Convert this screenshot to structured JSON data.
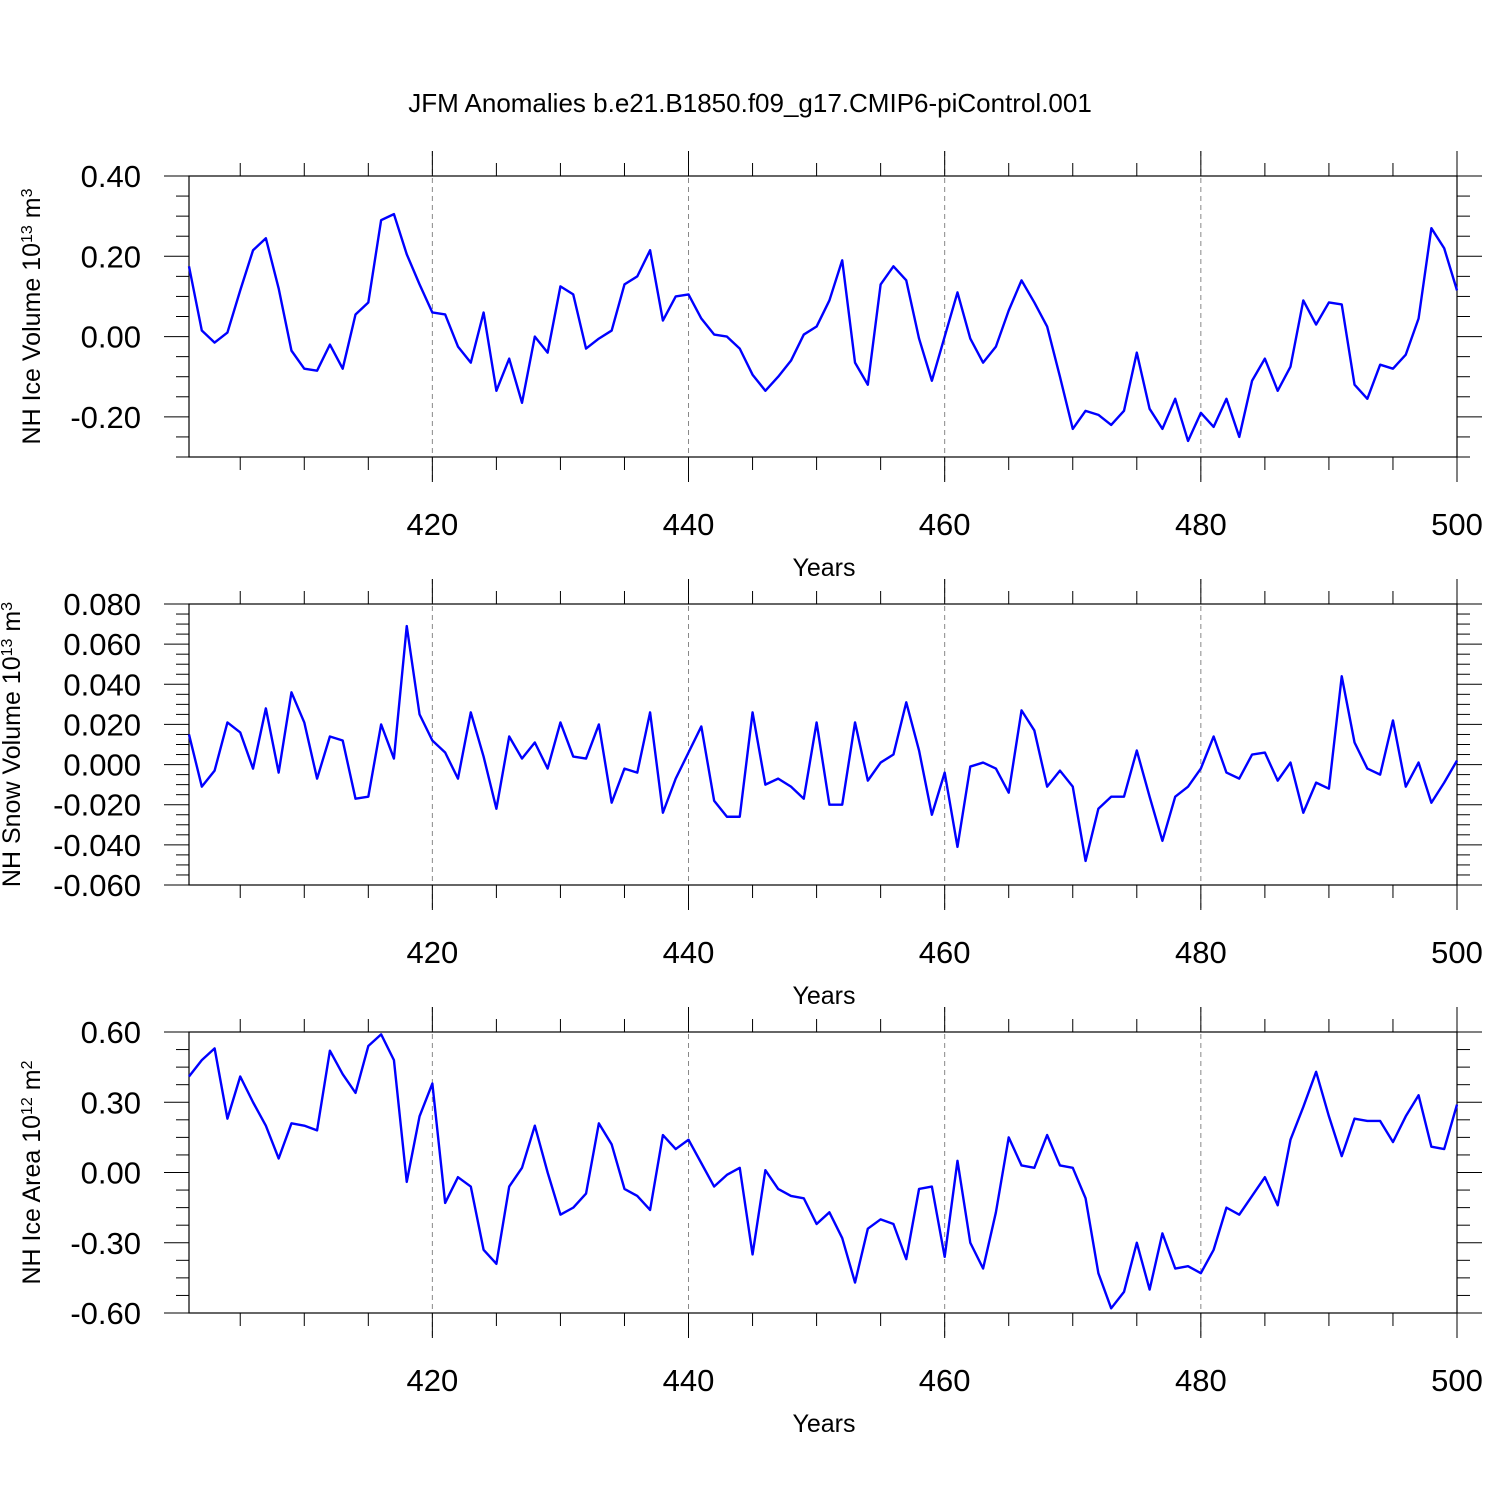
{
  "title": "JFM Anomalies b.e21.B1850.f09_g17.CMIP6-piControl.001",
  "chart_data": [
    {
      "type": "line",
      "ylabel": "NH Ice Volume",
      "units_base": "10",
      "units_exp": "13",
      "units_unit": "m",
      "units_unit_exp": "3",
      "xlabel": "Years",
      "xlim": [
        401,
        500
      ],
      "ylim": [
        -0.3,
        0.4
      ],
      "yticks": [
        -0.2,
        0.0,
        0.2,
        0.4
      ],
      "ytick_labels": [
        "-0.20",
        "0.00",
        "0.20",
        "0.40"
      ],
      "xticks": [
        420,
        440,
        460,
        480,
        500
      ],
      "xtick_labels": [
        "420",
        "440",
        "460",
        "480",
        "500"
      ],
      "x": [
        401,
        402,
        403,
        404,
        405,
        406,
        407,
        408,
        409,
        410,
        411,
        412,
        413,
        414,
        415,
        416,
        417,
        418,
        419,
        420,
        421,
        422,
        423,
        424,
        425,
        426,
        427,
        428,
        429,
        430,
        431,
        432,
        433,
        434,
        435,
        436,
        437,
        438,
        439,
        440,
        441,
        442,
        443,
        444,
        445,
        446,
        447,
        448,
        449,
        450,
        451,
        452,
        453,
        454,
        455,
        456,
        457,
        458,
        459,
        460,
        461,
        462,
        463,
        464,
        465,
        466,
        467,
        468,
        469,
        470,
        471,
        472,
        473,
        474,
        475,
        476,
        477,
        478,
        479,
        480,
        481,
        482,
        483,
        484,
        485,
        486,
        487,
        488,
        489,
        490,
        491,
        492,
        493,
        494,
        495,
        496,
        497,
        498,
        499,
        500
      ],
      "series": [
        {
          "name": "NH Ice Volume",
          "color": "#0000ff",
          "values": [
            0.175,
            0.015,
            -0.015,
            0.01,
            0.115,
            0.215,
            0.245,
            0.12,
            -0.035,
            -0.08,
            -0.085,
            -0.02,
            -0.08,
            0.055,
            0.085,
            0.29,
            0.305,
            0.205,
            0.13,
            0.06,
            0.055,
            -0.025,
            -0.065,
            0.06,
            -0.135,
            -0.055,
            -0.165,
            0.0,
            -0.04,
            0.125,
            0.105,
            -0.03,
            -0.005,
            0.015,
            0.13,
            0.15,
            0.215,
            0.04,
            0.1,
            0.105,
            0.045,
            0.005,
            0.0,
            -0.03,
            -0.095,
            -0.135,
            -0.1,
            -0.06,
            0.005,
            0.025,
            0.09,
            0.19,
            -0.065,
            -0.12,
            0.13,
            0.175,
            0.14,
            -0.005,
            -0.11,
            0.0,
            0.11,
            -0.005,
            -0.065,
            -0.025,
            0.065,
            0.14,
            0.085,
            0.025,
            -0.1,
            -0.23,
            -0.185,
            -0.195,
            -0.22,
            -0.185,
            -0.04,
            -0.18,
            -0.23,
            -0.155,
            -0.26,
            -0.19,
            -0.225,
            -0.155,
            -0.25,
            -0.11,
            -0.055,
            -0.135,
            -0.075,
            0.09,
            0.03,
            0.085,
            0.08,
            -0.12,
            -0.155,
            -0.07,
            -0.08,
            -0.045,
            0.045,
            0.27,
            0.22,
            0.115
          ]
        }
      ]
    },
    {
      "type": "line",
      "ylabel": "NH Snow Volume",
      "units_base": "10",
      "units_exp": "13",
      "units_unit": "m",
      "units_unit_exp": "3",
      "xlabel": "Years",
      "xlim": [
        401,
        500
      ],
      "ylim": [
        -0.06,
        0.08
      ],
      "yticks": [
        -0.06,
        -0.04,
        -0.02,
        0.0,
        0.02,
        0.04,
        0.06,
        0.08
      ],
      "ytick_labels": [
        "-0.060",
        "-0.040",
        "-0.020",
        "0.000",
        "0.020",
        "0.040",
        "0.060",
        "0.080"
      ],
      "xticks": [
        420,
        440,
        460,
        480,
        500
      ],
      "xtick_labels": [
        "420",
        "440",
        "460",
        "480",
        "500"
      ],
      "x": [
        401,
        402,
        403,
        404,
        405,
        406,
        407,
        408,
        409,
        410,
        411,
        412,
        413,
        414,
        415,
        416,
        417,
        418,
        419,
        420,
        421,
        422,
        423,
        424,
        425,
        426,
        427,
        428,
        429,
        430,
        431,
        432,
        433,
        434,
        435,
        436,
        437,
        438,
        439,
        440,
        441,
        442,
        443,
        444,
        445,
        446,
        447,
        448,
        449,
        450,
        451,
        452,
        453,
        454,
        455,
        456,
        457,
        458,
        459,
        460,
        461,
        462,
        463,
        464,
        465,
        466,
        467,
        468,
        469,
        470,
        471,
        472,
        473,
        474,
        475,
        476,
        477,
        478,
        479,
        480,
        481,
        482,
        483,
        484,
        485,
        486,
        487,
        488,
        489,
        490,
        491,
        492,
        493,
        494,
        495,
        496,
        497,
        498,
        499,
        500
      ],
      "series": [
        {
          "name": "NH Snow Volume",
          "color": "#0000ff",
          "values": [
            0.015,
            -0.011,
            -0.003,
            0.021,
            0.016,
            -0.002,
            0.028,
            -0.004,
            0.036,
            0.021,
            -0.007,
            0.014,
            0.012,
            -0.017,
            -0.016,
            0.02,
            0.003,
            0.069,
            0.025,
            0.012,
            0.006,
            -0.007,
            0.026,
            0.004,
            -0.022,
            0.014,
            0.003,
            0.011,
            -0.002,
            0.021,
            0.004,
            0.003,
            0.02,
            -0.019,
            -0.002,
            -0.004,
            0.026,
            -0.024,
            -0.007,
            0.006,
            0.019,
            -0.018,
            -0.026,
            -0.026,
            0.026,
            -0.01,
            -0.007,
            -0.011,
            -0.017,
            0.021,
            -0.02,
            -0.02,
            0.021,
            -0.008,
            0.001,
            0.005,
            0.031,
            0.007,
            -0.025,
            -0.004,
            -0.041,
            -0.001,
            0.001,
            -0.002,
            -0.014,
            0.027,
            0.017,
            -0.011,
            -0.003,
            -0.011,
            -0.048,
            -0.022,
            -0.016,
            -0.016,
            0.007,
            -0.016,
            -0.038,
            -0.016,
            -0.011,
            -0.002,
            0.014,
            -0.004,
            -0.007,
            0.005,
            0.006,
            -0.008,
            0.001,
            -0.024,
            -0.009,
            -0.012,
            0.044,
            0.011,
            -0.002,
            -0.005,
            0.022,
            -0.011,
            0.001,
            -0.019,
            -0.009,
            0.002
          ]
        }
      ]
    },
    {
      "type": "line",
      "ylabel": "NH Ice Area",
      "units_base": "10",
      "units_exp": "12",
      "units_unit": "m",
      "units_unit_exp": "2",
      "xlabel": "Years",
      "xlim": [
        401,
        500
      ],
      "ylim": [
        -0.6,
        0.6
      ],
      "yticks": [
        -0.6,
        -0.3,
        0.0,
        0.3,
        0.6
      ],
      "ytick_labels": [
        "-0.60",
        "-0.30",
        "0.00",
        "0.30",
        "0.60"
      ],
      "xticks": [
        420,
        440,
        460,
        480,
        500
      ],
      "xtick_labels": [
        "420",
        "440",
        "460",
        "480",
        "500"
      ],
      "x": [
        401,
        402,
        403,
        404,
        405,
        406,
        407,
        408,
        409,
        410,
        411,
        412,
        413,
        414,
        415,
        416,
        417,
        418,
        419,
        420,
        421,
        422,
        423,
        424,
        425,
        426,
        427,
        428,
        429,
        430,
        431,
        432,
        433,
        434,
        435,
        436,
        437,
        438,
        439,
        440,
        441,
        442,
        443,
        444,
        445,
        446,
        447,
        448,
        449,
        450,
        451,
        452,
        453,
        454,
        455,
        456,
        457,
        458,
        459,
        460,
        461,
        462,
        463,
        464,
        465,
        466,
        467,
        468,
        469,
        470,
        471,
        472,
        473,
        474,
        475,
        476,
        477,
        478,
        479,
        480,
        481,
        482,
        483,
        484,
        485,
        486,
        487,
        488,
        489,
        490,
        491,
        492,
        493,
        494,
        495,
        496,
        497,
        498,
        499,
        500
      ],
      "series": [
        {
          "name": "NH Ice Area",
          "color": "#0000ff",
          "values": [
            0.41,
            0.48,
            0.53,
            0.23,
            0.41,
            0.3,
            0.2,
            0.06,
            0.21,
            0.2,
            0.18,
            0.52,
            0.42,
            0.34,
            0.54,
            0.59,
            0.48,
            -0.04,
            0.24,
            0.38,
            -0.13,
            -0.02,
            -0.06,
            -0.33,
            -0.39,
            -0.06,
            0.02,
            0.2,
            0.0,
            -0.18,
            -0.15,
            -0.09,
            0.21,
            0.12,
            -0.07,
            -0.1,
            -0.16,
            0.16,
            0.1,
            0.14,
            0.04,
            -0.06,
            -0.01,
            0.02,
            -0.35,
            0.01,
            -0.07,
            -0.1,
            -0.11,
            -0.22,
            -0.17,
            -0.28,
            -0.47,
            -0.24,
            -0.2,
            -0.22,
            -0.37,
            -0.07,
            -0.06,
            -0.36,
            0.05,
            -0.3,
            -0.41,
            -0.17,
            0.15,
            0.03,
            0.02,
            0.16,
            0.03,
            0.02,
            -0.11,
            -0.43,
            -0.58,
            -0.51,
            -0.3,
            -0.5,
            -0.26,
            -0.41,
            -0.4,
            -0.43,
            -0.33,
            -0.15,
            -0.18,
            -0.1,
            -0.02,
            -0.14,
            0.14,
            0.28,
            0.43,
            0.24,
            0.07,
            0.23,
            0.22,
            0.22,
            0.13,
            0.24,
            0.33,
            0.11,
            0.1,
            0.29
          ]
        }
      ]
    }
  ]
}
